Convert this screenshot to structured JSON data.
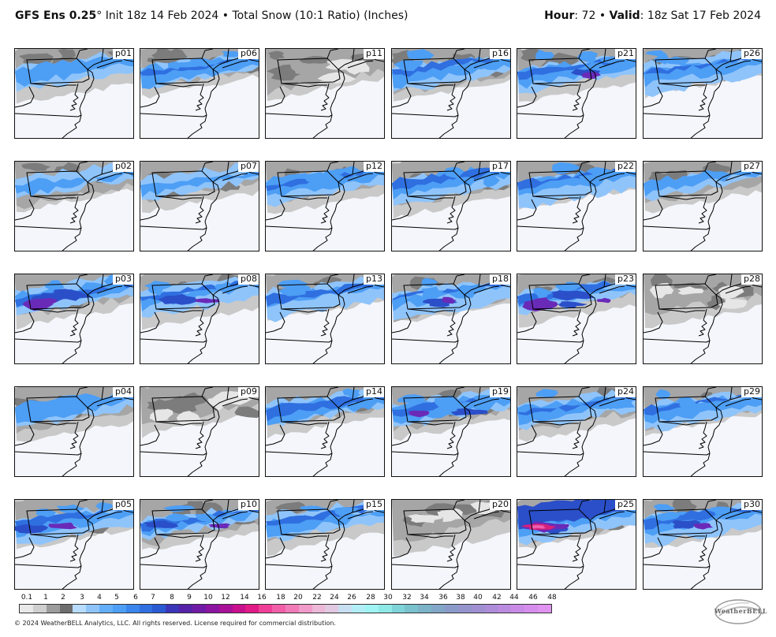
{
  "header": {
    "model": "GFS Ens 0.25",
    "degree": "°",
    "init": "Init 18z 14 Feb 2024",
    "bullet": "•",
    "product": "Total Snow (10:1 Ratio) (Inches)",
    "hour_label": "Hour",
    "hour_value": ": 72",
    "valid_label": "Valid",
    "valid_value": ": 18z Sat 17 Feb 2024"
  },
  "colors": {
    "land_bg": "#f4f6fb",
    "gray_light": "#c9c9c9",
    "gray_mid": "#a6a6a6",
    "gray_dark": "#7c7c7c",
    "gray_darker": "#5e5e5e",
    "blue_light": "#8fc4fb",
    "blue_mid": "#4d9ef5",
    "blue_dark": "#2f6fe0",
    "blue_deep": "#2b4fc9",
    "purple": "#6a2ab8",
    "magenta": "#d8207a",
    "pink": "#ee5fae",
    "outline": "#000000"
  },
  "panels": [
    {
      "id": "p01",
      "pattern": "gray"
    },
    {
      "id": "p06",
      "pattern": "blue"
    },
    {
      "id": "p11",
      "pattern": "lightgray"
    },
    {
      "id": "p16",
      "pattern": "blue"
    },
    {
      "id": "p21",
      "pattern": "blue-purple"
    },
    {
      "id": "p26",
      "pattern": "blue"
    },
    {
      "id": "p02",
      "pattern": "gray"
    },
    {
      "id": "p07",
      "pattern": "gray"
    },
    {
      "id": "p12",
      "pattern": "blue"
    },
    {
      "id": "p17",
      "pattern": "blue"
    },
    {
      "id": "p22",
      "pattern": "blue"
    },
    {
      "id": "p27",
      "pattern": "gray"
    },
    {
      "id": "p03",
      "pattern": "purple"
    },
    {
      "id": "p08",
      "pattern": "blue-purple"
    },
    {
      "id": "p13",
      "pattern": "blue"
    },
    {
      "id": "p18",
      "pattern": "blue-purple"
    },
    {
      "id": "p23",
      "pattern": "purple"
    },
    {
      "id": "p28",
      "pattern": "lightgray"
    },
    {
      "id": "p04",
      "pattern": "gray"
    },
    {
      "id": "p09",
      "pattern": "lightgray"
    },
    {
      "id": "p14",
      "pattern": "blue"
    },
    {
      "id": "p19",
      "pattern": "blue-purple"
    },
    {
      "id": "p24",
      "pattern": "blue"
    },
    {
      "id": "p29",
      "pattern": "blue"
    },
    {
      "id": "p05",
      "pattern": "blue-purple"
    },
    {
      "id": "p10",
      "pattern": "blue-purple"
    },
    {
      "id": "p15",
      "pattern": "blue"
    },
    {
      "id": "p20",
      "pattern": "lightgray"
    },
    {
      "id": "p25",
      "pattern": "magenta"
    },
    {
      "id": "p30",
      "pattern": "blue-purple"
    }
  ],
  "colorbar": {
    "labels": [
      "0.1",
      "1",
      "2",
      "3",
      "4",
      "5",
      "6",
      "7",
      "8",
      "9",
      "10",
      "12",
      "14",
      "16",
      "18",
      "20",
      "22",
      "24",
      "26",
      "28",
      "30",
      "32",
      "34",
      "36",
      "38",
      "40",
      "42",
      "44",
      "46",
      "48"
    ],
    "colors": [
      "#e9e9e9",
      "#cfcfcf",
      "#9c9c9c",
      "#6e6e6e",
      "#b8dcfd",
      "#8fc4fb",
      "#63aef8",
      "#4d9ef5",
      "#3a86ec",
      "#2f6fe0",
      "#2a5ad2",
      "#3b35b8",
      "#5522a8",
      "#6f1ba6",
      "#8b14a0",
      "#a81098",
      "#c8108e",
      "#e01a86",
      "#ef3f97",
      "#f05fa8",
      "#f07bb8",
      "#f09bc9",
      "#ecb8d8",
      "#e1c9e2",
      "#c7dff0",
      "#b2eef6",
      "#9ff3f3",
      "#8ee9e6",
      "#7ed4d8",
      "#79c2cd",
      "#7cb3c8",
      "#82a6c7",
      "#8a9bc9",
      "#9594cc",
      "#a08fd1",
      "#ad8cd8",
      "#bb8bdf",
      "#c98be6",
      "#d68eec",
      "#e093f0"
    ]
  },
  "copyright": "© 2024 WeatherBELL Analytics, LLC. All rights reserved. License required for commercial distribution.",
  "logo": {
    "text": "WeatherBELL",
    "icon": "weatherbell-logo-icon"
  }
}
